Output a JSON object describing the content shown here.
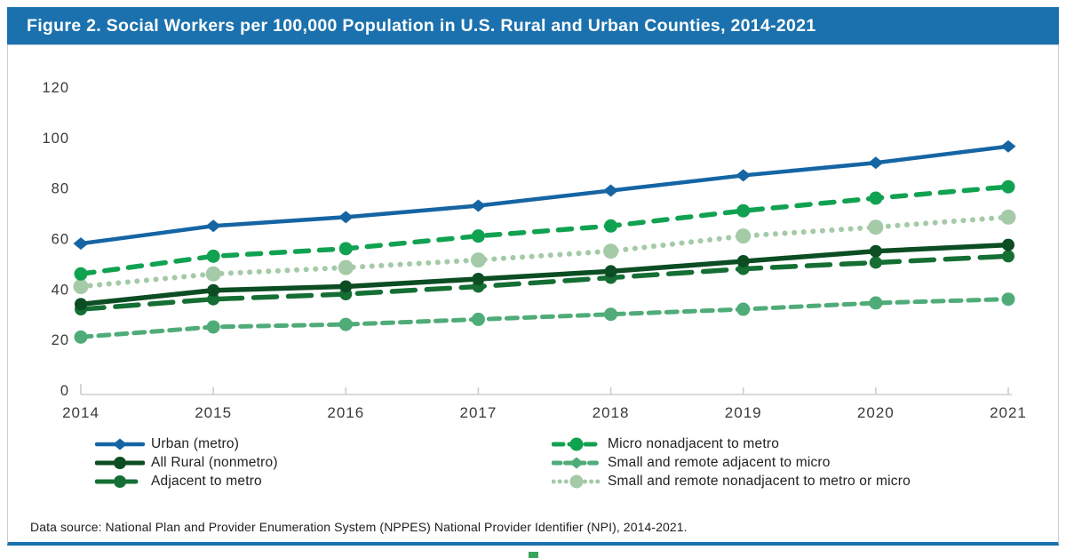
{
  "header": {
    "title": "Figure 2. Social Workers per 100,000 Population in U.S. Rural and Urban Counties, 2014-2021",
    "bg_color": "#1B71AD",
    "text_color": "#FFFFFF"
  },
  "chart_data": {
    "type": "line",
    "title": "Figure 2. Social Workers per 100,000 Population in U.S. Rural and Urban Counties, 2014-2021",
    "xlabel": "",
    "ylabel": "",
    "x": [
      "2014",
      "2015",
      "2016",
      "2017",
      "2018",
      "2019",
      "2020",
      "2021"
    ],
    "ylim": [
      0,
      120
    ],
    "yticks": [
      0,
      20,
      40,
      60,
      80,
      100,
      120
    ],
    "grid": false,
    "legend_position": "bottom",
    "axis_color": "#C8CDD2",
    "tick_text_color": "#3A3A3A",
    "series": [
      {
        "name": "Urban (metro)",
        "values": [
          58,
          65,
          68.5,
          73,
          79,
          85,
          90,
          96.5
        ],
        "color": "#1565A4",
        "dash": "none",
        "width": 4.5,
        "marker": "diamond",
        "legend_marker": "diamond",
        "marker_size": 8,
        "legend_dash": "none"
      },
      {
        "name": "All Rural (nonmetro)",
        "values": [
          34,
          39.5,
          41,
          44,
          47,
          51,
          55,
          57.5
        ],
        "color": "#0C4D23",
        "dash": "none",
        "width": 5.5,
        "marker": "circle",
        "legend_marker": "circle",
        "marker_size": 7,
        "legend_dash": "none"
      },
      {
        "name": "Adjacent to metro",
        "values": [
          32,
          36,
          38,
          41,
          44.5,
          48,
          50.5,
          53
        ],
        "color": "#156F34",
        "dash": "26 13",
        "width": 5.5,
        "marker": "circle",
        "legend_marker": "circle",
        "marker_size": 7,
        "legend_dash": "18 8"
      },
      {
        "name": "Micro nonadjacent to metro",
        "values": [
          46,
          53,
          56,
          61,
          65,
          71,
          76,
          80.5
        ],
        "color": "#11A251",
        "dash": "15 12",
        "width": 5.5,
        "marker": "circle",
        "legend_marker": "circle",
        "marker_size": 7.5,
        "legend_dash": "11 7"
      },
      {
        "name": "Small and remote adjacent to micro",
        "values": [
          21,
          25,
          26,
          28,
          30,
          32,
          34.5,
          36
        ],
        "color": "#4FAC78",
        "dash": "12 8",
        "width": 5,
        "marker": "circle",
        "legend_marker": "diamond",
        "marker_size": 7.5,
        "legend_dash": "8 5.5"
      },
      {
        "name": "Small and remote nonadjacent to metro or micro",
        "values": [
          41,
          46,
          48.5,
          51.5,
          55,
          61,
          64.5,
          68.5
        ],
        "color": "#A4CAA7",
        "dash": "0.1 10.5",
        "width": 6,
        "marker": "circle",
        "legend_marker": "circle",
        "marker_size": 8.5,
        "legend_dash": "0.1 7"
      }
    ],
    "draw_order": [
      5,
      4,
      2,
      1,
      3,
      0
    ],
    "legend_columns": [
      [
        0,
        1,
        2
      ],
      [
        3,
        4,
        5
      ]
    ]
  },
  "source_note": "Data source: National Plan and Provider Enumeration System (NPPES) National Provider Identifier (NPI), 2014-2021."
}
